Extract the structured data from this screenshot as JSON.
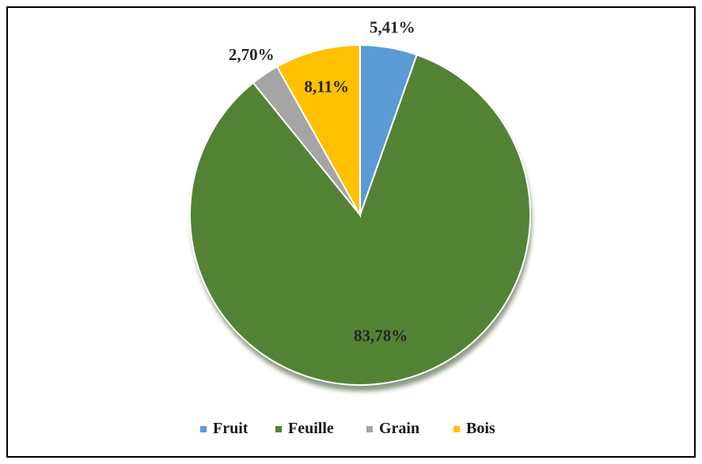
{
  "chart_data": {
    "type": "pie",
    "categories": [
      "Fruit",
      "Feuille",
      "Grain",
      "Bois"
    ],
    "values": [
      5.41,
      83.78,
      2.7,
      8.11
    ],
    "data_labels": [
      "5,41%",
      "83,78%",
      "2,70%",
      "8,11%"
    ],
    "colors": [
      "#5b9bd5",
      "#548235",
      "#a5a5a5",
      "#ffc000"
    ],
    "label_colors": [
      "#262626",
      "#262626",
      "#262626",
      "#262626"
    ],
    "start_angle_deg": 0,
    "direction": "clockwise",
    "legend_position": "bottom",
    "title": ""
  }
}
